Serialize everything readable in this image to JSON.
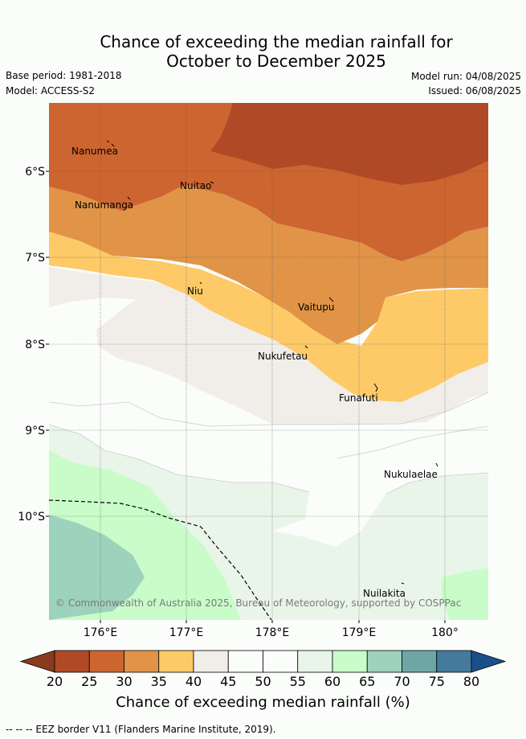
{
  "title_line1": "Chance of exceeding the median rainfall for",
  "title_line2": "October to December 2025",
  "meta": {
    "base_period": "Base period: 1981-2018",
    "model": "Model: ACCESS-S2",
    "model_run": "Model run: 04/08/2025",
    "issued": "Issued: 06/08/2025"
  },
  "map": {
    "lon_ticks": [
      "176°E",
      "177°E",
      "178°E",
      "179°E",
      "180°"
    ],
    "lat_ticks": [
      "6°S",
      "7°S",
      "8°S",
      "9°S",
      "10°S"
    ],
    "islands": [
      "Nanumea",
      "Nuitao",
      "Nanumanga",
      "Niu",
      "Vaitupu",
      "Nukufetau",
      "Funafuti",
      "Nukulaelae",
      "Nuilakita"
    ],
    "copyright": "© Commonwealth of Australia 2025, Bureau of Meteorology, supported by COSPPac"
  },
  "colorbar": {
    "ticks": [
      "20",
      "25",
      "30",
      "35",
      "40",
      "45",
      "50",
      "55",
      "60",
      "65",
      "70",
      "75",
      "80"
    ],
    "colors": [
      "#8a3a1f",
      "#b04a26",
      "#cd6531",
      "#e19447",
      "#fdca67",
      "#f1ede8",
      "#fbfdfb",
      "#fbfdfb",
      "#eaf5ea",
      "#c9fcc9",
      "#9dd2bc",
      "#6ea6a6",
      "#447a9c",
      "#1b4f8a"
    ],
    "label": "Chance of exceeding median rainfall (%)"
  },
  "footnote": "--  --  -- EEZ border V11 (Flanders Marine Institute, 2019)."
}
